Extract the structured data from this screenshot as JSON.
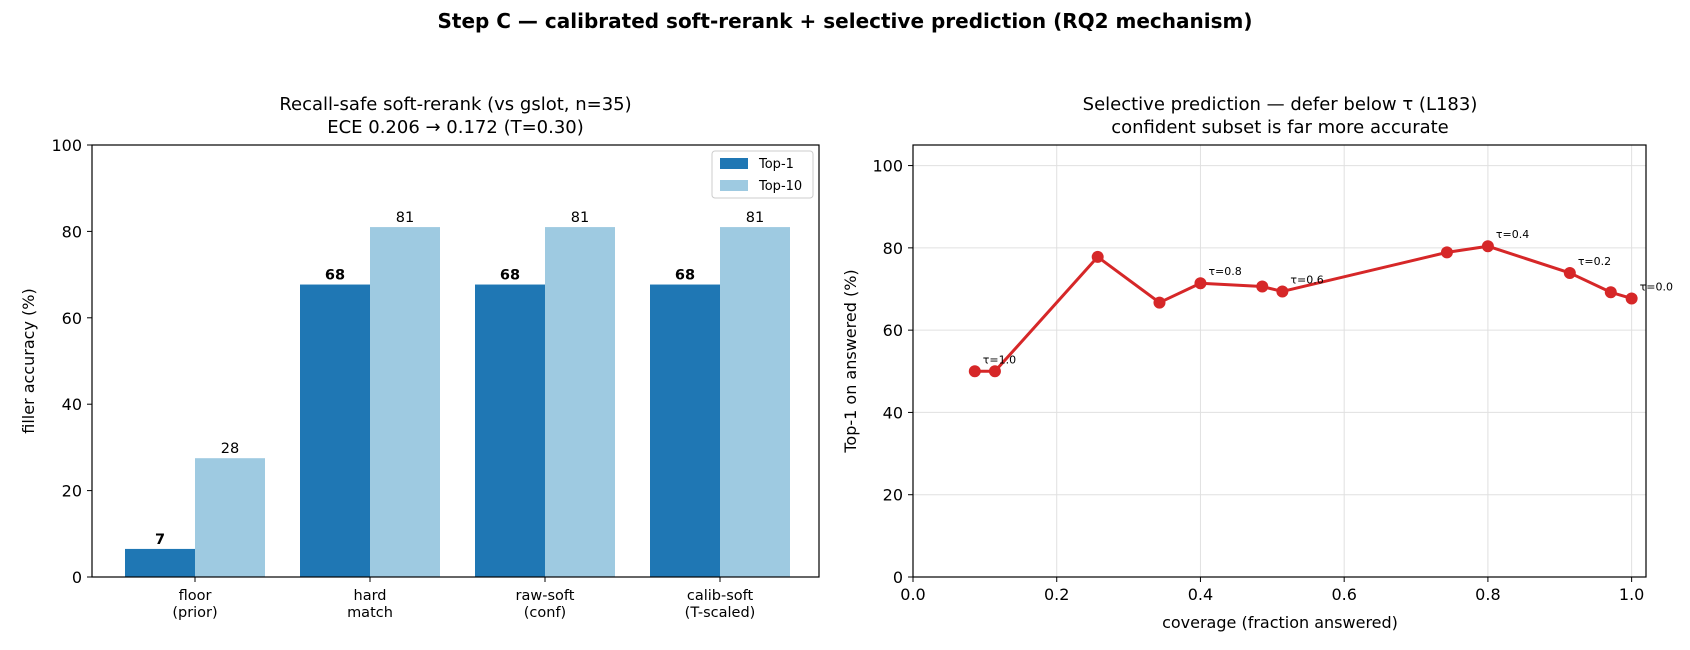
{
  "figure": {
    "suptitle": "Step C — calibrated soft-rerank + selective prediction (RQ2 mechanism)"
  },
  "colors": {
    "top1": "#1f77b4",
    "top10": "#9ecae1",
    "line": "#d62728",
    "grid": "#e0e0e0"
  },
  "chart_data": [
    {
      "type": "bar",
      "title": [
        "Recall-safe soft-rerank (vs gslot, n=35)",
        "ECE 0.206 → 0.172 (T=0.30)"
      ],
      "xlabel": "",
      "ylabel": "filler accuracy (%)",
      "ylim": [
        0,
        100
      ],
      "yticks": [
        0,
        20,
        40,
        60,
        80,
        100
      ],
      "categories": [
        [
          "floor",
          "(prior)"
        ],
        [
          "hard",
          "match"
        ],
        [
          "raw-soft",
          "(conf)"
        ],
        [
          "calib-soft",
          "(T-scaled)"
        ]
      ],
      "series": [
        {
          "name": "Top-1",
          "values": [
            6.5,
            67.7,
            67.7,
            67.7
          ],
          "labels": [
            "7",
            "68",
            "68",
            "68"
          ],
          "label_bold": true
        },
        {
          "name": "Top-10",
          "values": [
            27.5,
            81.0,
            81.0,
            81.0
          ],
          "labels": [
            "28",
            "81",
            "81",
            "81"
          ],
          "label_bold": false
        }
      ],
      "legend": "top-right",
      "grid": false
    },
    {
      "type": "line",
      "title": [
        "Selective prediction — defer below τ (L183)",
        "confident subset is far more accurate"
      ],
      "xlabel": "coverage (fraction answered)",
      "ylabel": "Top-1 on answered (%)",
      "xlim": [
        0.0,
        1.02
      ],
      "ylim": [
        0,
        105
      ],
      "xticks": [
        0.0,
        0.2,
        0.4,
        0.6,
        0.8,
        1.0
      ],
      "xticklabels": [
        "0.0",
        "0.2",
        "0.4",
        "0.6",
        "0.8",
        "1.0"
      ],
      "yticks": [
        0,
        20,
        40,
        60,
        80,
        100
      ],
      "grid": true,
      "x": [
        0.086,
        0.114,
        0.257,
        0.343,
        0.4,
        0.486,
        0.514,
        0.743,
        0.8,
        0.914,
        0.971,
        1.0
      ],
      "y": [
        50.0,
        50.0,
        77.8,
        66.7,
        71.4,
        70.6,
        69.4,
        78.9,
        80.4,
        73.9,
        69.2,
        67.7
      ],
      "annotations": [
        {
          "text": "τ=1.0",
          "x": 0.086,
          "y": 50.0
        },
        {
          "text": "τ=0.8",
          "x": 0.4,
          "y": 71.4
        },
        {
          "text": "τ=0.6",
          "x": 0.514,
          "y": 69.4
        },
        {
          "text": "τ=0.4",
          "x": 0.8,
          "y": 80.4
        },
        {
          "text": "τ=0.2",
          "x": 0.914,
          "y": 73.9
        },
        {
          "text": "τ=0.0",
          "x": 1.0,
          "y": 67.7
        }
      ]
    }
  ]
}
